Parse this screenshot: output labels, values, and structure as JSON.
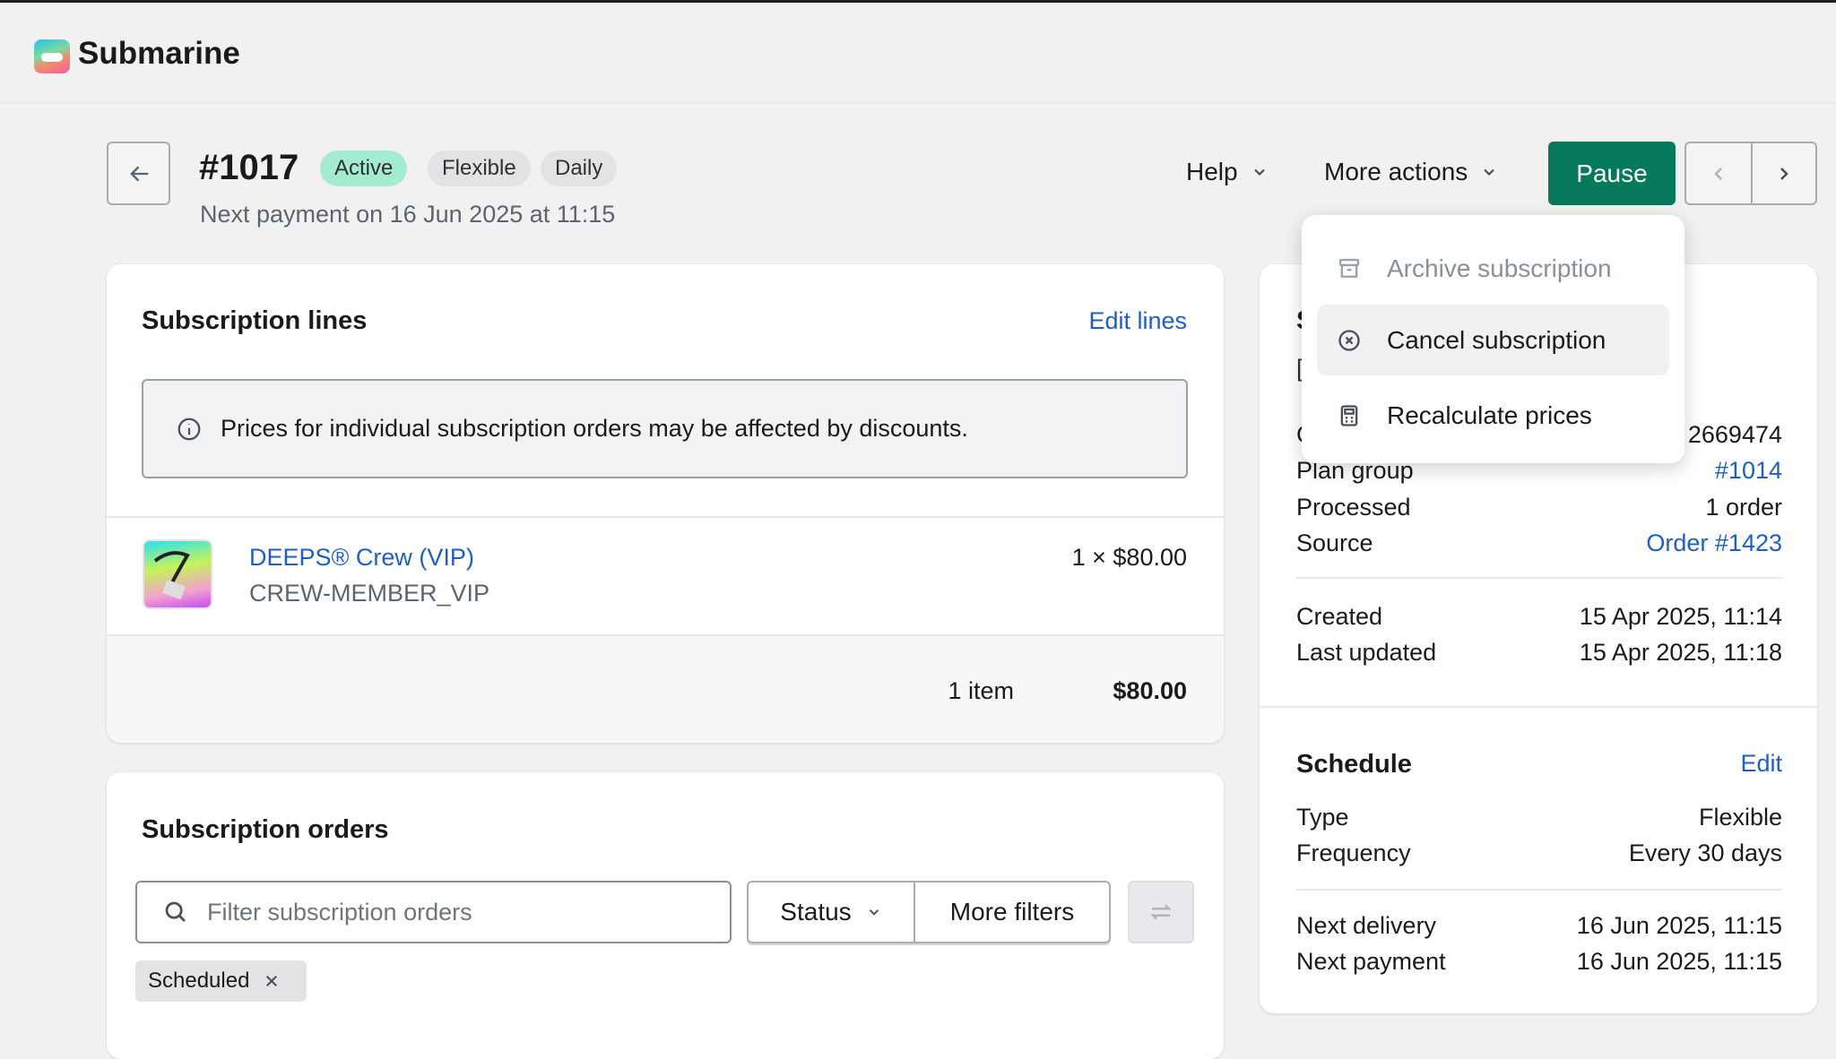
{
  "app": {
    "name": "Submarine"
  },
  "header": {
    "title": "#1017",
    "badges": [
      "Active",
      "Flexible",
      "Daily"
    ],
    "subtitle": "Next payment on 16 Jun 2025 at 11:15",
    "help_label": "Help",
    "more_actions_label": "More actions",
    "pause_label": "Pause"
  },
  "colors": {
    "primary": "#06795a",
    "link": "#1f5fc4",
    "active_badge": "#a3ecd0"
  },
  "menu": {
    "items": [
      {
        "label": "Archive subscription",
        "icon": "archive-icon",
        "disabled": true
      },
      {
        "label": "Cancel subscription",
        "icon": "cancel-circle-icon",
        "highlighted": true
      },
      {
        "label": "Recalculate prices",
        "icon": "calculator-icon"
      }
    ]
  },
  "lines": {
    "title": "Subscription lines",
    "edit_label": "Edit lines",
    "notice": "Prices for individual subscription orders may be affected by discounts.",
    "items": [
      {
        "name": "DEEPS® Crew (VIP)",
        "sku": "CREW-MEMBER_VIP",
        "qty_price": "1 × $80.00"
      }
    ],
    "count": "1 item",
    "total": "$80.00"
  },
  "orders": {
    "title": "Subscription orders",
    "search_placeholder": "Filter subscription orders",
    "status_label": "Status",
    "more_filters_label": "More filters",
    "chip": "Scheduled"
  },
  "details": {
    "heading_fragment": "S",
    "line_fragment": "[",
    "rows": [
      {
        "label": "C",
        "value": "2669474"
      },
      {
        "label": "Plan group",
        "value": "#1014",
        "link": true
      },
      {
        "label": "Processed",
        "value": "1 order"
      },
      {
        "label": "Source",
        "value": "Order #1423",
        "link": true
      }
    ],
    "dates": [
      {
        "label": "Created",
        "value": "15 Apr 2025, 11:14"
      },
      {
        "label": "Last updated",
        "value": "15 Apr 2025, 11:18"
      }
    ]
  },
  "schedule": {
    "title": "Schedule",
    "edit_label": "Edit",
    "rows": [
      {
        "label": "Type",
        "value": "Flexible"
      },
      {
        "label": "Frequency",
        "value": "Every 30 days"
      }
    ],
    "next": [
      {
        "label": "Next delivery",
        "value": "16 Jun 2025, 11:15"
      },
      {
        "label": "Next payment",
        "value": "16 Jun 2025, 11:15"
      }
    ]
  }
}
